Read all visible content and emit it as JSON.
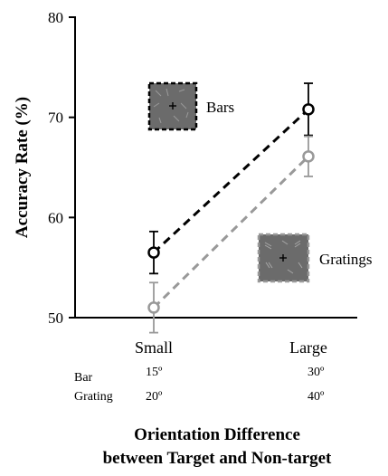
{
  "chart_data": {
    "type": "line",
    "xlabel": [
      "Orientation Difference",
      "between Target and Non-target"
    ],
    "ylabel": "Accuracy Rate (%)",
    "ylim": [
      50,
      80
    ],
    "yticks": [
      50,
      60,
      70,
      80
    ],
    "categories": [
      "Small",
      "Large"
    ],
    "sublabels": [
      {
        "name": "Bar",
        "values": [
          "15º",
          "30º"
        ]
      },
      {
        "name": "Grating",
        "values": [
          "20º",
          "40º"
        ]
      }
    ],
    "series": [
      {
        "name": "Bars",
        "values": [
          56.5,
          70.8
        ],
        "errors": [
          2.1,
          2.6
        ],
        "color": "#000000"
      },
      {
        "name": "Gratings",
        "values": [
          51.0,
          66.1
        ],
        "errors": [
          2.5,
          2.0
        ],
        "color": "#999999"
      }
    ],
    "grid": false,
    "legend": "inline, next to lines"
  },
  "colors": {
    "bars": "#000000",
    "gratings": "#999999",
    "patch_fill": "#6b6b6b"
  }
}
